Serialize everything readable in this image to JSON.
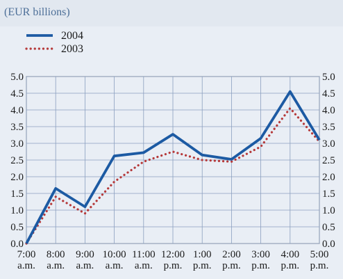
{
  "chart_data": {
    "type": "line",
    "unit_label": "(EUR billions)",
    "categories": [
      [
        "7:00",
        "a.m."
      ],
      [
        "8:00",
        "a.m."
      ],
      [
        "9:00",
        "a.m."
      ],
      [
        "10:00",
        "a.m."
      ],
      [
        "11:00",
        "a.m."
      ],
      [
        "12:00",
        "p.m."
      ],
      [
        "1:00",
        "p.m."
      ],
      [
        "2:00",
        "p.m."
      ],
      [
        "3:00",
        "p.m."
      ],
      [
        "4:00",
        "p.m."
      ],
      [
        "5:00",
        "p.m."
      ]
    ],
    "series": [
      {
        "name": "2004",
        "style": "solid",
        "color": "#1c5aa3",
        "values": [
          0.0,
          1.65,
          1.1,
          2.62,
          2.72,
          3.27,
          2.65,
          2.52,
          3.15,
          4.55,
          3.1
        ]
      },
      {
        "name": "2003",
        "style": "dotted",
        "color": "#b5393a",
        "values": [
          0.0,
          1.4,
          0.9,
          1.85,
          2.45,
          2.75,
          2.5,
          2.45,
          2.9,
          4.05,
          3.05
        ]
      }
    ],
    "ylim": [
      0,
      5
    ],
    "yticks": [
      "0.0",
      "0.5",
      "1.0",
      "1.5",
      "2.0",
      "2.5",
      "3.0",
      "3.5",
      "4.0",
      "4.5",
      "5.0"
    ],
    "grid": true,
    "legend_position": "top-left",
    "dual_y_axis": true
  }
}
